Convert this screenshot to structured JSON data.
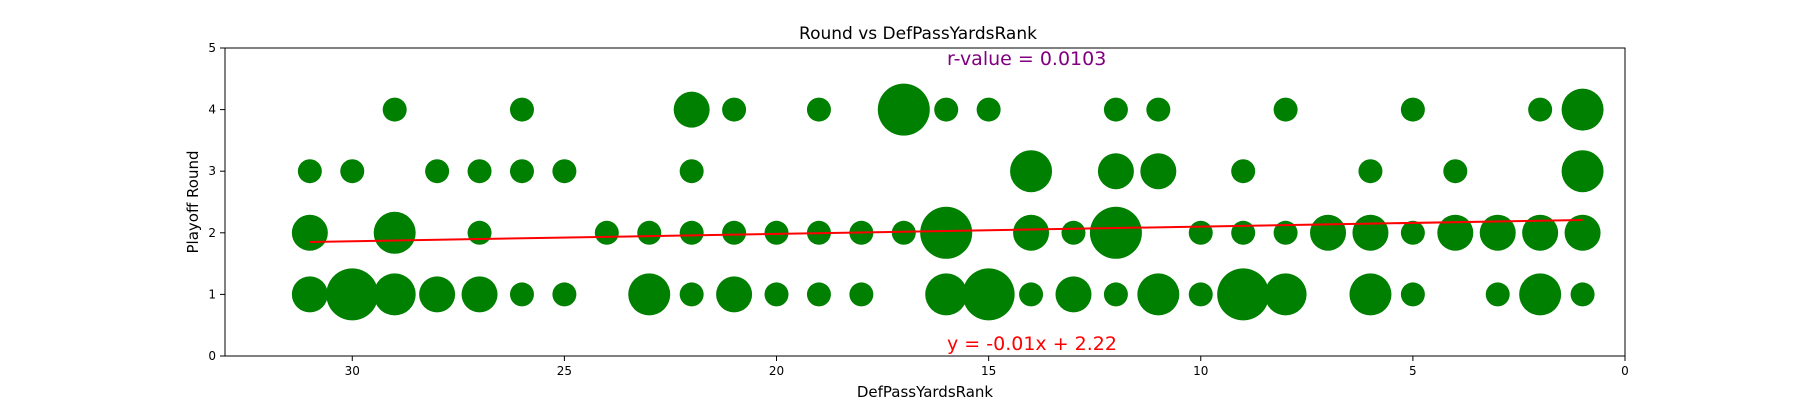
{
  "chart_data": {
    "type": "scatter",
    "title": "Round vs DefPassYardsRank",
    "xlabel": "DefPassYardsRank",
    "ylabel": "Playoff Round",
    "xlim": [
      33,
      0
    ],
    "ylim": [
      0,
      5
    ],
    "x_ticks": [
      30,
      25,
      20,
      15,
      10,
      5,
      0
    ],
    "y_ticks": [
      0,
      1,
      2,
      3,
      4,
      5
    ],
    "grid": false,
    "marker_color": "#008000",
    "line_color": "#ff0000",
    "r_value_color": "#800080",
    "annotations": {
      "r_value": "r-value = 0.0103",
      "equation": "y = -0.01x + 2.22"
    },
    "regression": {
      "slope": -0.0119,
      "intercept": 2.22,
      "x_range": [
        31,
        1
      ]
    },
    "points": [
      {
        "x": 29,
        "y": 4,
        "s": 1
      },
      {
        "x": 26,
        "y": 4,
        "s": 1
      },
      {
        "x": 22,
        "y": 4,
        "s": 2
      },
      {
        "x": 21,
        "y": 4,
        "s": 1
      },
      {
        "x": 19,
        "y": 4,
        "s": 1
      },
      {
        "x": 17,
        "y": 4,
        "s": 4
      },
      {
        "x": 16,
        "y": 4,
        "s": 1
      },
      {
        "x": 15,
        "y": 4,
        "s": 1
      },
      {
        "x": 12,
        "y": 4,
        "s": 1
      },
      {
        "x": 11,
        "y": 4,
        "s": 1
      },
      {
        "x": 8,
        "y": 4,
        "s": 1
      },
      {
        "x": 5,
        "y": 4,
        "s": 1
      },
      {
        "x": 2,
        "y": 4,
        "s": 1
      },
      {
        "x": 1,
        "y": 4,
        "s": 3
      },
      {
        "x": 31,
        "y": 3,
        "s": 1
      },
      {
        "x": 30,
        "y": 3,
        "s": 1
      },
      {
        "x": 28,
        "y": 3,
        "s": 1
      },
      {
        "x": 27,
        "y": 3,
        "s": 1
      },
      {
        "x": 26,
        "y": 3,
        "s": 1
      },
      {
        "x": 25,
        "y": 3,
        "s": 1
      },
      {
        "x": 22,
        "y": 3,
        "s": 1
      },
      {
        "x": 14,
        "y": 3,
        "s": 3
      },
      {
        "x": 12,
        "y": 3,
        "s": 2
      },
      {
        "x": 11,
        "y": 3,
        "s": 2
      },
      {
        "x": 9,
        "y": 3,
        "s": 1
      },
      {
        "x": 6,
        "y": 3,
        "s": 1
      },
      {
        "x": 4,
        "y": 3,
        "s": 1
      },
      {
        "x": 1,
        "y": 3,
        "s": 3
      },
      {
        "x": 31,
        "y": 2,
        "s": 2
      },
      {
        "x": 29,
        "y": 2,
        "s": 3
      },
      {
        "x": 27,
        "y": 2,
        "s": 1
      },
      {
        "x": 24,
        "y": 2,
        "s": 1
      },
      {
        "x": 23,
        "y": 2,
        "s": 1
      },
      {
        "x": 22,
        "y": 2,
        "s": 1
      },
      {
        "x": 21,
        "y": 2,
        "s": 1
      },
      {
        "x": 20,
        "y": 2,
        "s": 1
      },
      {
        "x": 19,
        "y": 2,
        "s": 1
      },
      {
        "x": 18,
        "y": 2,
        "s": 1
      },
      {
        "x": 17,
        "y": 2,
        "s": 1
      },
      {
        "x": 16,
        "y": 2,
        "s": 4
      },
      {
        "x": 14,
        "y": 2,
        "s": 2
      },
      {
        "x": 13,
        "y": 2,
        "s": 1
      },
      {
        "x": 12,
        "y": 2,
        "s": 4
      },
      {
        "x": 10,
        "y": 2,
        "s": 1
      },
      {
        "x": 9,
        "y": 2,
        "s": 1
      },
      {
        "x": 8,
        "y": 2,
        "s": 1
      },
      {
        "x": 7,
        "y": 2,
        "s": 2
      },
      {
        "x": 6,
        "y": 2,
        "s": 2
      },
      {
        "x": 5,
        "y": 2,
        "s": 1
      },
      {
        "x": 4,
        "y": 2,
        "s": 2
      },
      {
        "x": 3,
        "y": 2,
        "s": 2
      },
      {
        "x": 2,
        "y": 2,
        "s": 2
      },
      {
        "x": 1,
        "y": 2,
        "s": 2
      },
      {
        "x": 31,
        "y": 1,
        "s": 2
      },
      {
        "x": 30,
        "y": 1,
        "s": 4
      },
      {
        "x": 29,
        "y": 1,
        "s": 3
      },
      {
        "x": 28,
        "y": 1,
        "s": 2
      },
      {
        "x": 27,
        "y": 1,
        "s": 2
      },
      {
        "x": 26,
        "y": 1,
        "s": 1
      },
      {
        "x": 25,
        "y": 1,
        "s": 1
      },
      {
        "x": 23,
        "y": 1,
        "s": 3
      },
      {
        "x": 22,
        "y": 1,
        "s": 1
      },
      {
        "x": 21,
        "y": 1,
        "s": 2
      },
      {
        "x": 20,
        "y": 1,
        "s": 1
      },
      {
        "x": 19,
        "y": 1,
        "s": 1
      },
      {
        "x": 18,
        "y": 1,
        "s": 1
      },
      {
        "x": 16,
        "y": 1,
        "s": 3
      },
      {
        "x": 15,
        "y": 1,
        "s": 4
      },
      {
        "x": 14,
        "y": 1,
        "s": 1
      },
      {
        "x": 13,
        "y": 1,
        "s": 2
      },
      {
        "x": 12,
        "y": 1,
        "s": 1
      },
      {
        "x": 11,
        "y": 1,
        "s": 3
      },
      {
        "x": 10,
        "y": 1,
        "s": 1
      },
      {
        "x": 9,
        "y": 1,
        "s": 4
      },
      {
        "x": 8,
        "y": 1,
        "s": 3
      },
      {
        "x": 6,
        "y": 1,
        "s": 3
      },
      {
        "x": 5,
        "y": 1,
        "s": 1
      },
      {
        "x": 3,
        "y": 1,
        "s": 1
      },
      {
        "x": 2,
        "y": 1,
        "s": 3
      },
      {
        "x": 1,
        "y": 1,
        "s": 1
      }
    ]
  }
}
